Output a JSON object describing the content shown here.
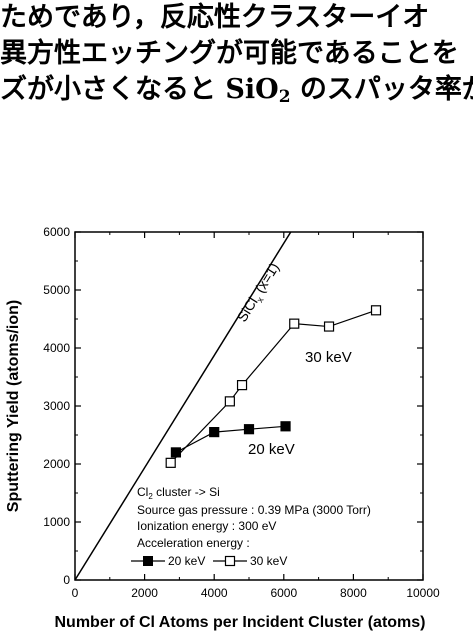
{
  "text_lines": [
    {
      "text": "ためであり，反応性クラスターイオ"
    },
    {
      "prefix": "異方性エッチングが可能であることを"
    },
    {
      "prefix": "ズが小さくなると SiO",
      "sub": "2",
      "suffix": " のスパッタ率が"
    }
  ],
  "chart_data": {
    "type": "line",
    "xlabel": "Number of Cl Atoms per Incident Cluster (atoms)",
    "ylabel": "Sputtering Yield (atoms/ion)",
    "xlim": [
      0,
      10000
    ],
    "ylim": [
      0,
      6000
    ],
    "x_ticks": [
      "0",
      "2000",
      "4000",
      "6000",
      "8000",
      "10000"
    ],
    "y_ticks": [
      "0",
      "1000",
      "2000",
      "3000",
      "4000",
      "5000",
      "6000"
    ],
    "grid": false,
    "reference_line": {
      "label": "SiCl",
      "label_sub": "x",
      "label_suffix": " (x=1)",
      "points": [
        [
          0,
          0
        ],
        [
          6200,
          6000
        ]
      ]
    },
    "series": [
      {
        "name": "20 keV",
        "marker": "filled-square",
        "x": [
          2900,
          4000,
          5000,
          6050
        ],
        "y": [
          2200,
          2550,
          2600,
          2650
        ]
      },
      {
        "name": "30 keV",
        "marker": "open-square",
        "x": [
          2750,
          4450,
          4800,
          6300,
          7300,
          8650
        ],
        "y": [
          2020,
          3080,
          3360,
          4420,
          4370,
          4650
        ]
      }
    ],
    "annotations": [
      {
        "id": "line1",
        "text": "Cl",
        "sub": "2",
        "suffix": " cluster -> Si"
      },
      {
        "id": "line2",
        "text": "Source gas pressure : 0.39 MPa (3000 Torr)"
      },
      {
        "id": "line3",
        "text": "Ionization energy : 300 eV"
      },
      {
        "id": "line4",
        "text": "Acceleration energy :"
      }
    ],
    "legend": {
      "placement": "bottom-left",
      "entries": [
        "20 keV",
        "30 keV"
      ]
    }
  }
}
